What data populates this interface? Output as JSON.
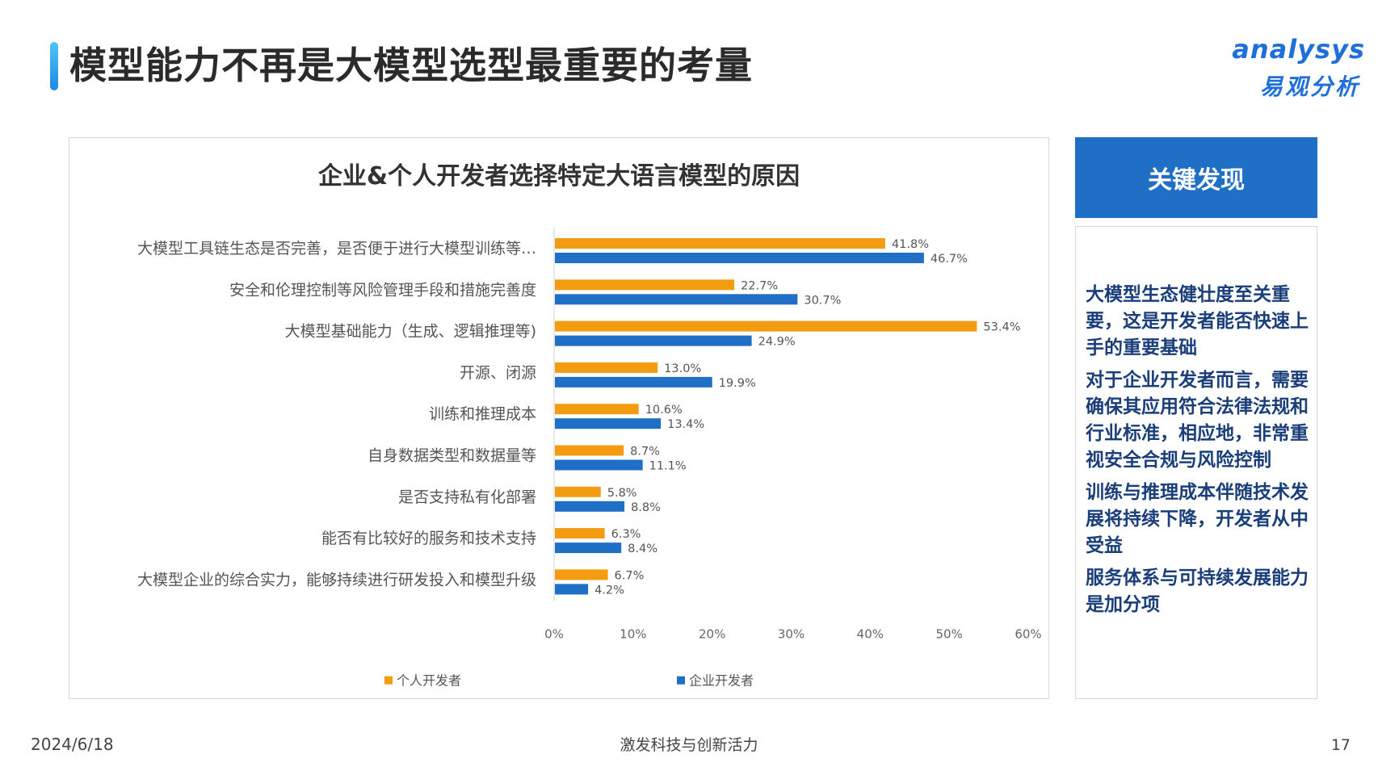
{
  "page": {
    "title": "模型能力不再是大模型选型最重要的考量",
    "logo_en": "analysys",
    "logo_cn": "易观分析"
  },
  "side_panel": {
    "header": "关键发现",
    "findings": [
      "大模型生态健壮度至关重要，这是开发者能否快速上手的重要基础",
      "对于企业开发者而言，需要确保其应用符合法律法规和行业标准，相应地，非常重视安全合规与风险控制",
      "训练与推理成本伴随技术发展将持续下降，开发者从中受益",
      "服务体系与可持续发展能力是加分项"
    ]
  },
  "footer": {
    "date": "2024/6/18",
    "center": "激发科技与创新活力",
    "page_number": "17"
  },
  "colors": {
    "personal": "#f39c12",
    "enterprise": "#1f6fc6",
    "title_accent": "#1e88e5",
    "side_header_bg": "#1f6fc6"
  },
  "chart_data": {
    "type": "bar",
    "orientation": "horizontal",
    "title": "企业&个人开发者选择特定大语言模型的原因",
    "categories": [
      "大模型工具链生态是否完善，是否便于进行大模型训练等…",
      "安全和伦理控制等风险管理手段和措施完善度",
      "大模型基础能力（生成、逻辑推理等)",
      "开源、闭源",
      "训练和推理成本",
      "自身数据类型和数据量等",
      "是否支持私有化部署",
      "能否有比较好的服务和技术支持",
      "大模型企业的综合实力，能够持续进行研发投入和模型升级"
    ],
    "series": [
      {
        "name": "个人开发者",
        "values": [
          41.8,
          22.7,
          53.4,
          13.0,
          10.6,
          8.7,
          5.8,
          6.3,
          6.7
        ],
        "labels": [
          "41.8%",
          "22.7%",
          "53.4%",
          "13.0%",
          "10.6%",
          "8.7%",
          "5.8%",
          "6.3%",
          "6.7%"
        ]
      },
      {
        "name": "企业开发者",
        "values": [
          46.7,
          30.7,
          24.9,
          19.9,
          13.4,
          11.1,
          8.8,
          8.4,
          4.2
        ],
        "labels": [
          "46.7%",
          "30.7%",
          "24.9%",
          "19.9%",
          "13.4%",
          "11.1%",
          "8.8%",
          "8.4%",
          "4.2%"
        ]
      }
    ],
    "x_ticks": [
      "0%",
      "10%",
      "20%",
      "30%",
      "40%",
      "50%",
      "60%"
    ],
    "xlim": [
      0,
      60
    ],
    "grid": false,
    "legend_position": "bottom"
  }
}
